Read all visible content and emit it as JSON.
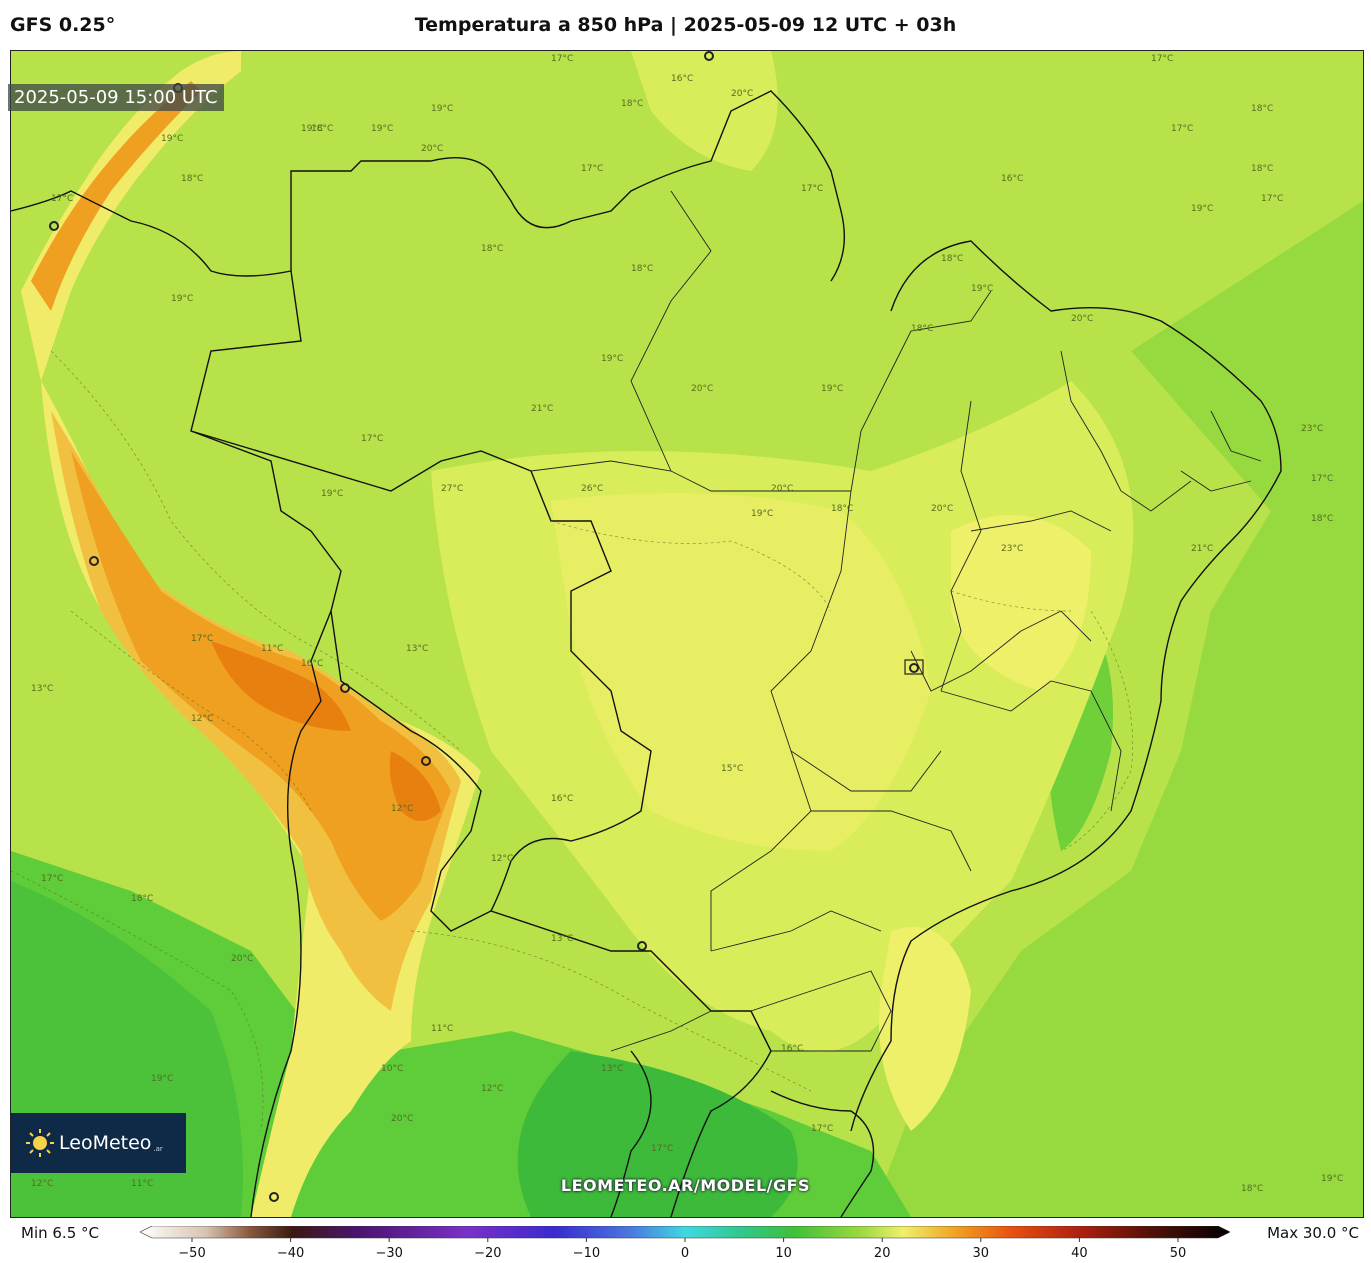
{
  "header": {
    "model": "GFS 0.25°",
    "title": "Temperatura a 850 hPa | 2025-05-09 12 UTC + 03h"
  },
  "map": {
    "valid_time": "2025-05-09 15:00 UTC",
    "watermark": "LEOMETEO.AR/MODEL/GFS",
    "logo_text": "LeoMeteo",
    "logo_sub": ".ar",
    "contour_labels": [
      "19°C",
      "17°C",
      "18°C",
      "19°C",
      "16°C",
      "18°C",
      "20°C",
      "17°C",
      "17°C",
      "18°C",
      "19°C",
      "17°C",
      "18°C",
      "17°C",
      "18°C",
      "19°C",
      "20°C",
      "19°C",
      "17°C",
      "16°C",
      "17°C",
      "18°C",
      "19°C",
      "18°C",
      "18°C",
      "19°C",
      "18°C",
      "20°C",
      "20°C",
      "19°C",
      "19°C",
      "21°C",
      "17°C",
      "19°C",
      "27°C",
      "26°C",
      "20°C",
      "18°C",
      "19°C",
      "20°C",
      "23°C",
      "21°C",
      "23°C",
      "17°C",
      "18°C",
      "17°C",
      "13°C",
      "12°C",
      "11°C",
      "16°C",
      "17°C",
      "18°C",
      "19°C",
      "20°C",
      "13°C",
      "12°C",
      "13°C",
      "12°C",
      "11°C",
      "10°C",
      "15°C",
      "16°C",
      "12°C",
      "11°C",
      "20°C",
      "12°C",
      "13°C",
      "17°C",
      "16°C",
      "17°C",
      "18°C",
      "19°C"
    ],
    "colors": {
      "deep_green": "#3fbf3a",
      "green": "#7fd43a",
      "light_green": "#b8e24a",
      "yellow_green": "#d9ec5a",
      "yellow": "#f0ec6a",
      "orange": "#f0a020",
      "dark_orange": "#e88010",
      "border": "#111111"
    }
  },
  "legend": {
    "min_label": "Min 6.5 °C",
    "max_label": "Max 30.0 °C",
    "ticks": [
      "−50",
      "−40",
      "−30",
      "−20",
      "−10",
      "0",
      "10",
      "20",
      "30",
      "40",
      "50"
    ]
  }
}
